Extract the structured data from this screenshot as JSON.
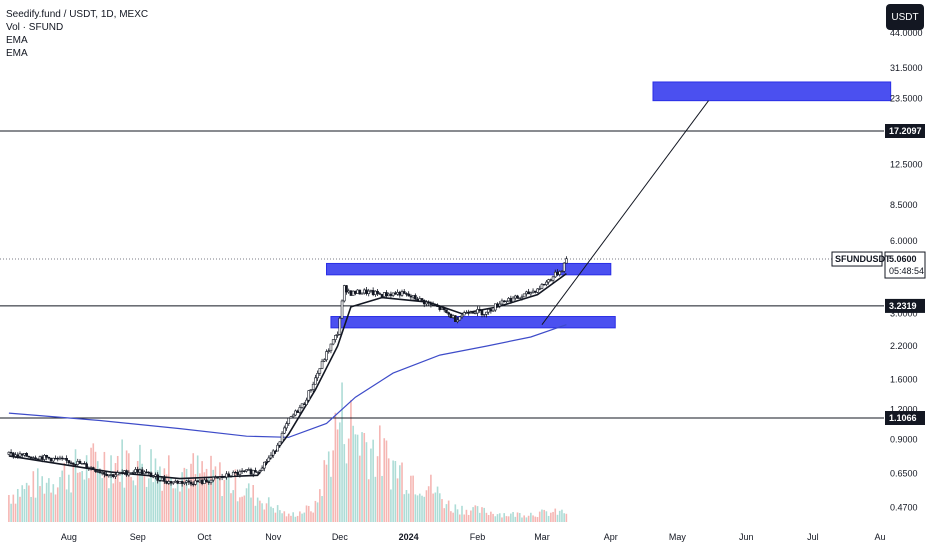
{
  "legend": {
    "symbol_line": "Seedify.fund / USDT, 1D, MEXC",
    "vol_line": "Vol · SFUND",
    "ema1": "EMA",
    "ema2": "EMA"
  },
  "currency_button": "USDT",
  "colors": {
    "accent_blue": "#2a2ee6",
    "zone_fill": "#4b50f0",
    "vol_up": "#9fd6cf",
    "vol_down": "#f3a9a6",
    "candle": "#131722",
    "ema_long": "#3e4cc9"
  },
  "chart_data": {
    "type": "candlestick",
    "scale": "log",
    "price_axis_ticks": [
      "44.0000",
      "31.5000",
      "23.5000",
      "17.2097",
      "12.5000",
      "8.5000",
      "6.0000",
      "5.0600",
      "3.2319",
      "3.0000",
      "2.2000",
      "1.6000",
      "1.2000",
      "1.1066",
      "0.9000",
      "0.6500",
      "0.4700"
    ],
    "time_axis_ticks": [
      "Aug",
      "Sep",
      "Oct",
      "Nov",
      "Dec",
      "2024",
      "Feb",
      "Mar",
      "Apr",
      "May",
      "Jun",
      "Jul",
      "Au"
    ],
    "horizontal_levels": [
      17.2097,
      3.2319,
      1.1066
    ],
    "level_labels": [
      "17.2097",
      "3.2319",
      "1.1066"
    ],
    "current_price": {
      "symbol": "SFUNDUSDT",
      "price": "5.0600",
      "countdown": "05:48:54"
    },
    "zones": [
      {
        "from_date": "2024-04-20",
        "to_date": "2024-08-05",
        "low": 23.0,
        "high": 27.5
      },
      {
        "from_date": "2023-11-25",
        "to_date": "2024-04-01",
        "low": 4.35,
        "high": 4.85
      },
      {
        "from_date": "2023-11-27",
        "to_date": "2024-04-03",
        "low": 2.62,
        "high": 2.92
      }
    ],
    "trend_line": {
      "from_date": "2024-03-01",
      "from_price": 2.7,
      "to_date": "2024-05-15",
      "to_price": 23.0
    },
    "price_path": [
      {
        "date": "2023-07-05",
        "price": 0.78
      },
      {
        "date": "2023-07-20",
        "price": 0.76
      },
      {
        "date": "2023-08-05",
        "price": 0.72
      },
      {
        "date": "2023-08-20",
        "price": 0.64
      },
      {
        "date": "2023-09-01",
        "price": 0.67
      },
      {
        "date": "2023-09-15",
        "price": 0.6
      },
      {
        "date": "2023-10-01",
        "price": 0.6
      },
      {
        "date": "2023-10-15",
        "price": 0.65
      },
      {
        "date": "2023-10-25",
        "price": 0.67
      },
      {
        "date": "2023-11-01",
        "price": 0.79
      },
      {
        "date": "2023-11-08",
        "price": 1.08
      },
      {
        "date": "2023-11-15",
        "price": 1.28
      },
      {
        "date": "2023-11-20",
        "price": 1.62
      },
      {
        "date": "2023-11-25",
        "price": 2.05
      },
      {
        "date": "2023-11-30",
        "price": 2.5
      },
      {
        "date": "2023-12-03",
        "price": 3.85
      },
      {
        "date": "2023-12-06",
        "price": 3.65
      },
      {
        "date": "2023-12-12",
        "price": 3.7
      },
      {
        "date": "2023-12-20",
        "price": 3.6
      },
      {
        "date": "2023-12-28",
        "price": 3.65
      },
      {
        "date": "2024-01-05",
        "price": 3.45
      },
      {
        "date": "2024-01-15",
        "price": 3.15
      },
      {
        "date": "2024-01-22",
        "price": 2.85
      },
      {
        "date": "2024-01-28",
        "price": 3.1
      },
      {
        "date": "2024-02-05",
        "price": 3.02
      },
      {
        "date": "2024-02-12",
        "price": 3.4
      },
      {
        "date": "2024-02-20",
        "price": 3.5
      },
      {
        "date": "2024-02-28",
        "price": 3.8
      },
      {
        "date": "2024-03-05",
        "price": 4.2
      },
      {
        "date": "2024-03-10",
        "price": 4.6
      },
      {
        "date": "2024-03-12",
        "price": 5.06
      }
    ],
    "ema_short": [
      {
        "date": "2023-07-05",
        "price": 0.77
      },
      {
        "date": "2023-08-20",
        "price": 0.66
      },
      {
        "date": "2023-09-20",
        "price": 0.62
      },
      {
        "date": "2023-10-25",
        "price": 0.64
      },
      {
        "date": "2023-11-08",
        "price": 0.95
      },
      {
        "date": "2023-11-20",
        "price": 1.45
      },
      {
        "date": "2023-11-30",
        "price": 2.2
      },
      {
        "date": "2023-12-06",
        "price": 3.2
      },
      {
        "date": "2023-12-20",
        "price": 3.5
      },
      {
        "date": "2024-01-10",
        "price": 3.35
      },
      {
        "date": "2024-01-25",
        "price": 3.0
      },
      {
        "date": "2024-02-10",
        "price": 3.2
      },
      {
        "date": "2024-02-28",
        "price": 3.6
      },
      {
        "date": "2024-03-12",
        "price": 4.4
      }
    ],
    "ema_long": [
      {
        "date": "2023-07-05",
        "price": 1.16
      },
      {
        "date": "2023-08-15",
        "price": 1.08
      },
      {
        "date": "2023-09-20",
        "price": 1.0
      },
      {
        "date": "2023-10-20",
        "price": 0.93
      },
      {
        "date": "2023-11-08",
        "price": 0.92
      },
      {
        "date": "2023-11-25",
        "price": 1.05
      },
      {
        "date": "2023-12-08",
        "price": 1.35
      },
      {
        "date": "2023-12-25",
        "price": 1.7
      },
      {
        "date": "2024-01-15",
        "price": 2.02
      },
      {
        "date": "2024-02-05",
        "price": 2.2
      },
      {
        "date": "2024-02-25",
        "price": 2.4
      },
      {
        "date": "2024-03-12",
        "price": 2.7
      }
    ],
    "volume_profile": [
      {
        "date": "2023-07-05",
        "rel": 0.22
      },
      {
        "date": "2023-08-01",
        "rel": 0.4
      },
      {
        "date": "2023-08-20",
        "rel": 0.5
      },
      {
        "date": "2023-09-15",
        "rel": 0.45
      },
      {
        "date": "2023-10-10",
        "rel": 0.35
      },
      {
        "date": "2023-10-25",
        "rel": 0.2
      },
      {
        "date": "2023-11-08",
        "rel": 0.05
      },
      {
        "date": "2023-11-20",
        "rel": 0.12
      },
      {
        "date": "2023-12-01",
        "rel": 0.85
      },
      {
        "date": "2023-12-10",
        "rel": 0.7
      },
      {
        "date": "2023-12-25",
        "rel": 0.45
      },
      {
        "date": "2024-01-10",
        "rel": 0.3
      },
      {
        "date": "2024-01-20",
        "rel": 0.12
      },
      {
        "date": "2024-02-15",
        "rel": 0.06
      },
      {
        "date": "2024-03-12",
        "rel": 0.08
      }
    ],
    "grid": false
  }
}
